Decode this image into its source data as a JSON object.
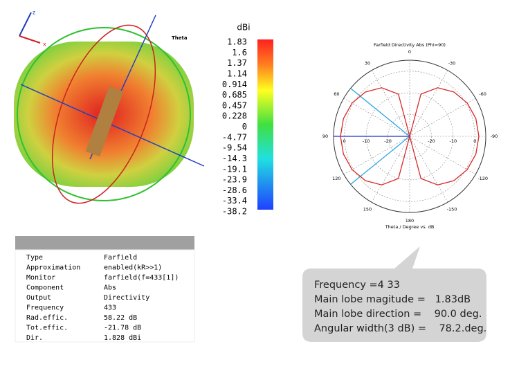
{
  "render": {
    "axis_z": "z",
    "axis_x": "x",
    "theta_label": "Theta"
  },
  "colorbar": {
    "unit": "dBi",
    "ticks": [
      {
        "value": 1.83,
        "label": "1.83"
      },
      {
        "value": 1.6,
        "label": "1.6"
      },
      {
        "value": 1.37,
        "label": "1.37"
      },
      {
        "value": 1.14,
        "label": "1.14"
      },
      {
        "value": 0.914,
        "label": "0.914"
      },
      {
        "value": 0.685,
        "label": "0.685"
      },
      {
        "value": 0.457,
        "label": "0.457"
      },
      {
        "value": 0.228,
        "label": "0.228"
      },
      {
        "value": 0,
        "label": "0"
      },
      {
        "value": -4.77,
        "label": "-4.77"
      },
      {
        "value": -9.54,
        "label": "-9.54"
      },
      {
        "value": -14.3,
        "label": "-14.3"
      },
      {
        "value": -19.1,
        "label": "-19.1"
      },
      {
        "value": -23.9,
        "label": "-23.9"
      },
      {
        "value": -28.6,
        "label": "-28.6"
      },
      {
        "value": -33.4,
        "label": "-33.4"
      },
      {
        "value": -38.2,
        "label": "-38.2"
      }
    ]
  },
  "chart_data": {
    "type": "polar",
    "title": "Farfield Directivity Abs (Phi=90)",
    "xlabel": "Theta / Degree vs. dB",
    "theta": [
      0,
      15,
      30,
      45,
      60,
      75,
      90,
      105,
      120,
      135,
      150,
      165,
      180,
      195,
      210,
      225,
      240,
      255,
      270,
      285,
      300,
      315,
      330,
      345
    ],
    "series": [
      {
        "color": "#d62728",
        "values": [
          -30,
          -9.9,
          -4.2,
          -1.2,
          0.58,
          1.53,
          1.83,
          1.53,
          0.58,
          -1.2,
          -4.2,
          -9.9,
          -30,
          -9.9,
          -4.2,
          -1.2,
          0.58,
          1.53,
          1.83,
          1.53,
          0.58,
          -1.2,
          -4.2,
          -9.9
        ]
      }
    ],
    "markers": [
      50.9,
      90,
      129.1
    ],
    "marker_color": "#2aa7e0",
    "rlim": [
      -30,
      5
    ],
    "rticks": [
      -20,
      -10,
      0
    ],
    "angle_ticks": [
      {
        "value": 0,
        "label": "0"
      },
      {
        "value": 30,
        "label": "30"
      },
      {
        "value": 60,
        "label": "60"
      },
      {
        "value": 90,
        "label": "90"
      },
      {
        "value": 120,
        "label": "120"
      },
      {
        "value": 150,
        "label": "150"
      },
      {
        "value": 180,
        "label": "180"
      },
      {
        "value": 210,
        "label": "-150"
      },
      {
        "value": 240,
        "label": "-120"
      },
      {
        "value": 270,
        "label": "-90"
      },
      {
        "value": 300,
        "label": "-60"
      },
      {
        "value": 330,
        "label": "-30"
      }
    ]
  },
  "table": {
    "rows": [
      [
        "Type",
        "Farfield"
      ],
      [
        "Approximation",
        "enabled(kR>>1)"
      ],
      [
        "Monitor",
        "farfield(f=433[1])"
      ],
      [
        "Component",
        "Abs"
      ],
      [
        "Output",
        "Directivity"
      ],
      [
        "Frequency",
        "433"
      ],
      [
        "Rad.effic.",
        "58.22 dB"
      ],
      [
        "Tot.effic.",
        "-21.78 dB"
      ],
      [
        "Dir.",
        "1.828 dBi"
      ]
    ]
  },
  "callout": {
    "lines": [
      "Frequency =4 33",
      "Main lobe magitude =   1.83dB",
      "Main lobe direction =    90.0 deg.",
      "Angular width(3 dB) =    78.2.deg."
    ]
  }
}
